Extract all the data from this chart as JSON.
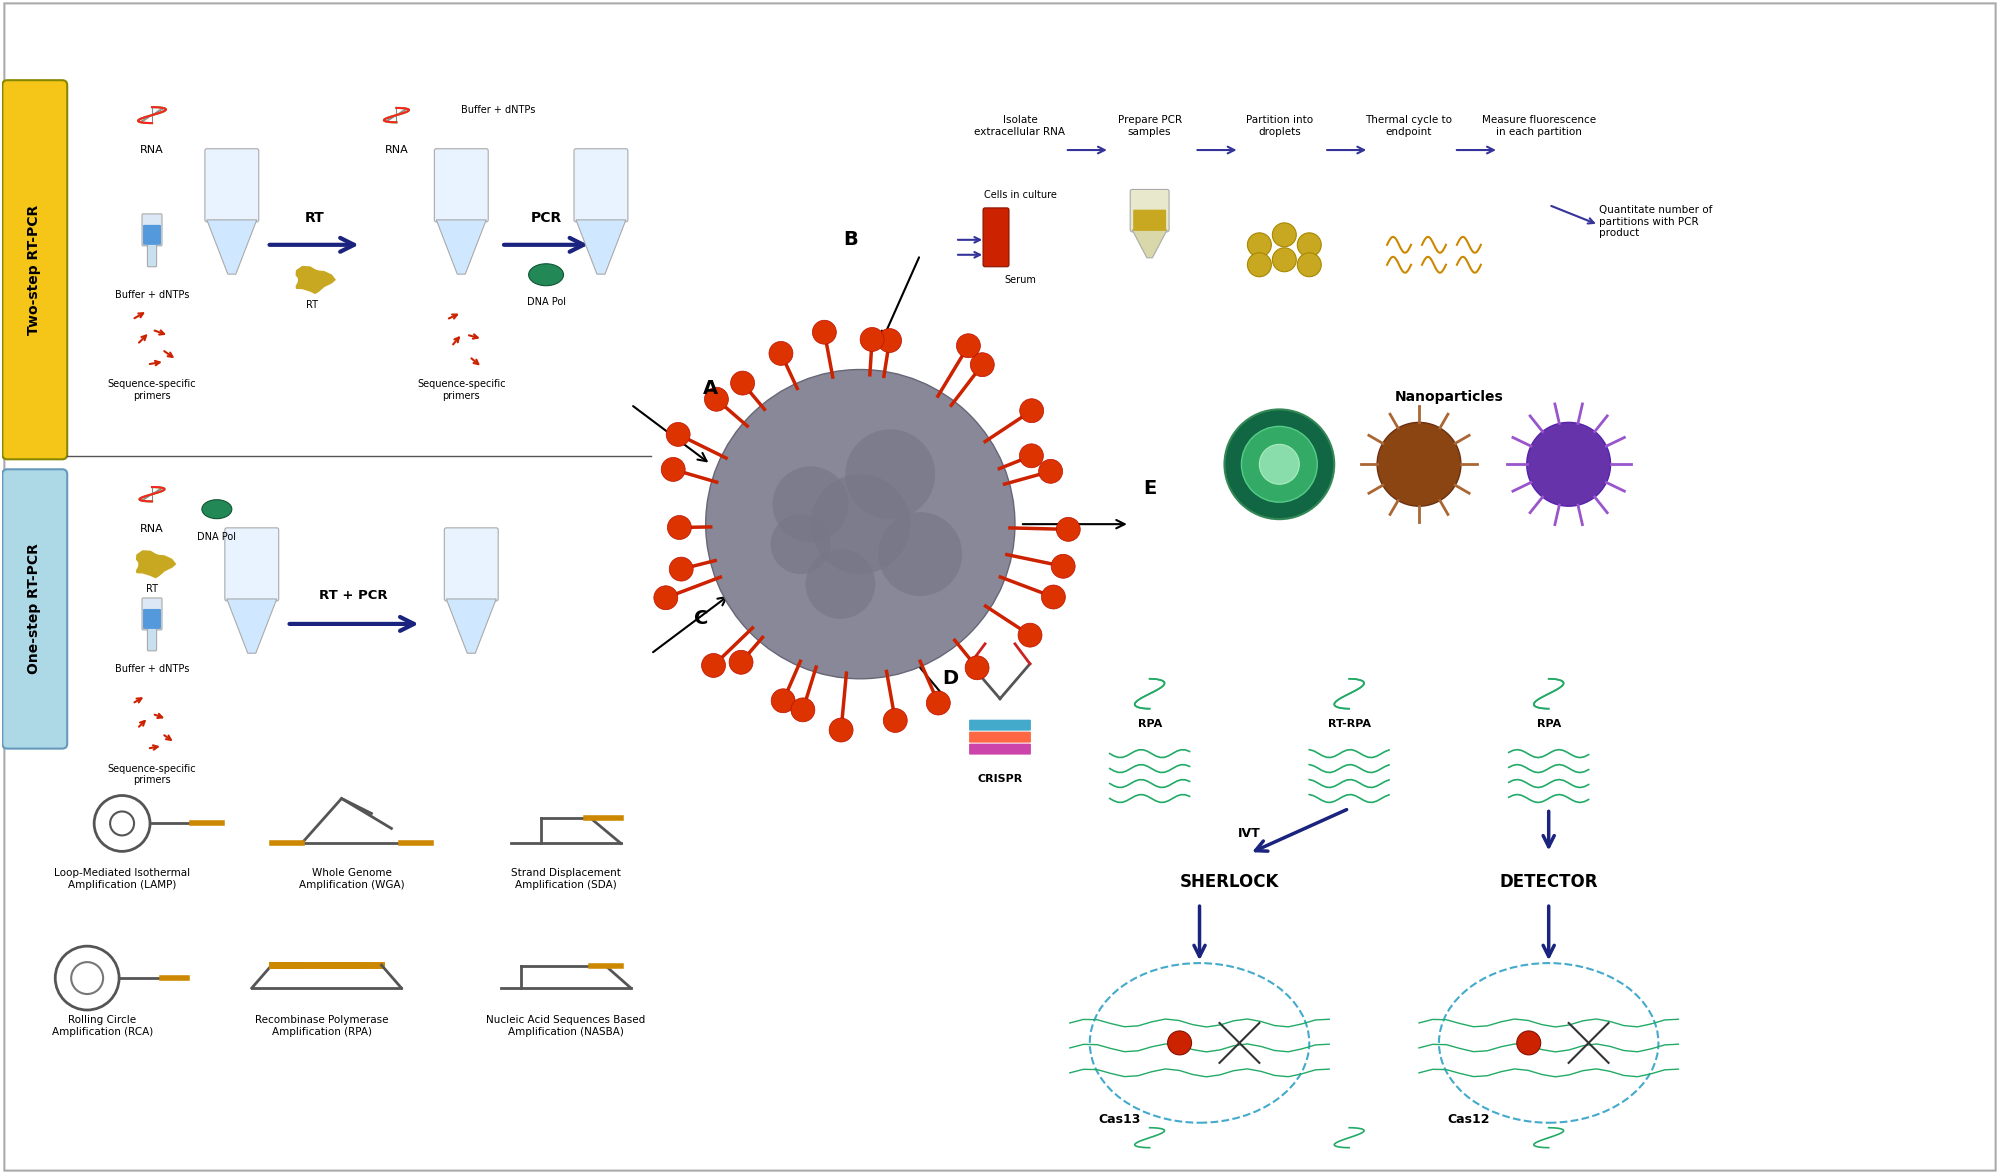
{
  "title": "",
  "bg_color": "#ffffff",
  "two_step_label": "Two-step RT-PCR",
  "one_step_label": "One-step RT-PCR",
  "two_step_bg": "#f5c518",
  "one_step_bg": "#add8e6",
  "arrow_color": "#1a237e",
  "section_A_label": "A",
  "section_B_label": "B",
  "section_C_label": "C",
  "section_D_label": "D",
  "section_E_label": "E",
  "rt_label": "RT",
  "pcr_label": "PCR",
  "rt_pcr_label": "RT + PCR",
  "rna_label": "RNA",
  "buffer_label": "Buffer + dNTPs",
  "seq_primers_label": "Sequence-specific\nprimers",
  "dna_pol_label": "DNA Pol",
  "lamp_label": "Loop-Mediated Isothermal\nAmplification (LAMP)",
  "wga_label": "Whole Genome\nAmplification (WGA)",
  "sda_label": "Strand Displacement\nAmplification (SDA)",
  "rca_label": "Rolling Circle\nAmplification (RCA)",
  "rpa_label": "Recombinase Polymerase\nAmplification (RPA)",
  "nasba_label": "Nucleic Acid Sequences Based\nAmplification (NASBA)",
  "crispr_label": "CRISPR",
  "nanoparticles_label": "Nanoparticles",
  "sherlock_label": "SHERLOCK",
  "detector_label": "DETECTOR",
  "cas13_label": "Cas13",
  "cas12_label": "Cas12",
  "ivt_label": "IVT",
  "rpa_top_label": "RPA",
  "rtrpa_label": "RT-RPA",
  "ddpcr_steps": [
    "Isolate\nextracellular RNA",
    "Prepare PCR\nsamples",
    "Partition into\ndroplets",
    "Thermal cycle to\nendpoint",
    "Measure fluorescence\nin each partition"
  ],
  "ddpcr_note": "Quantitate number of\npartitions with PCR\nproduct",
  "cells_label": "Cells in culture",
  "serum_label": "Serum",
  "text_color": "#000000",
  "separator_color": "#555555",
  "line_color": "#333333"
}
